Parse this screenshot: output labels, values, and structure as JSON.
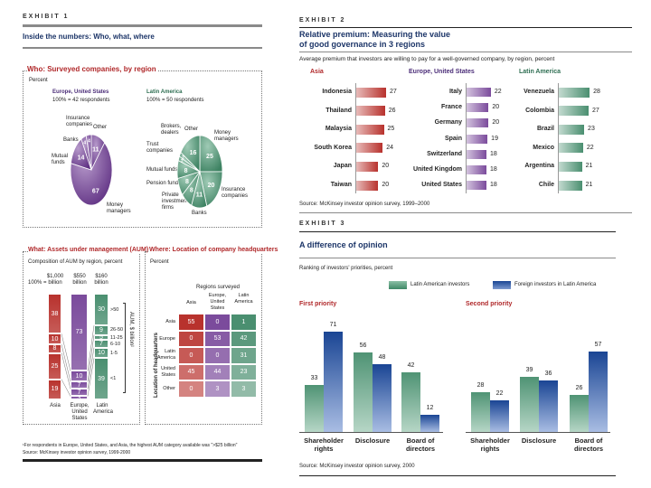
{
  "exhibit1": {
    "label": "EXHIBIT 1",
    "title": "Inside the numbers: Who, what, where",
    "footnote": "¹For respondents in Europe, United States, and Asia, the highest AUM category available was \">$25 billion\"",
    "source": "Source: McKinsey investor opinion survey, 1999-2000"
  },
  "exhibit2": {
    "label": "EXHIBIT 2",
    "title_line1": "Relative premium: Measuring the value",
    "title_line2": "of good governance in 3 regions",
    "source": "Source: McKinsey investor opinion survey, 1999–2000"
  },
  "exhibit3": {
    "label": "EXHIBIT 3",
    "title": "A difference of opinion",
    "source": "Source: McKinsey investor opinion survey, 2000"
  },
  "colors": {
    "asia_red": "#b8322d",
    "europe_purple": "#7b4b9c",
    "latam_green": "#4a8f70",
    "foreign_blue": "#1f4d9b",
    "title_navy": "#1c3568",
    "heading_red": "#b0282a"
  },
  "chart_data": [
    {
      "type": "pie",
      "title": "Who: Surveyed companies, by region",
      "unit": "Percent",
      "pies": [
        {
          "name": "Europe, United States",
          "base": "100% = 42 respondents",
          "slices": [
            {
              "label": "Other",
              "value": 11
            },
            {
              "label": "Money managers",
              "value": 67
            },
            {
              "label": "Mutual funds",
              "value": 14
            },
            {
              "label": "Banks",
              "value": 4
            },
            {
              "label": "Insurance companies",
              "value": 4
            }
          ]
        },
        {
          "name": "Latin America",
          "base": "100% = 50 respondents",
          "slices": [
            {
              "label": "Money managers",
              "value": 25
            },
            {
              "label": "Insurance companies",
              "value": 20
            },
            {
              "label": "Banks",
              "value": 11
            },
            {
              "label": "Private investment firms",
              "value": 8
            },
            {
              "label": "Pension funds",
              "value": 8
            },
            {
              "label": "Mutual funds",
              "value": 8
            },
            {
              "label": "Trust companies",
              "value": 2
            },
            {
              "label": "Brokers, dealers",
              "value": 2
            },
            {
              "label": "Other",
              "value": 16
            }
          ]
        }
      ]
    },
    {
      "type": "bar",
      "stacked": true,
      "title": "What: Assets under management (AUM)",
      "subtitle": "Composition of AUM by region, percent",
      "total_prefix": "100% =",
      "axis_label": "AUM, $ billion¹",
      "bands": [
        ">50",
        "26-50",
        "11-25",
        "6-10",
        "1-5",
        "<1"
      ],
      "columns": [
        {
          "name": "Asia",
          "total": "$1,000",
          "total_unit": "billion",
          "segments": [
            38,
            10,
            8,
            25,
            19
          ]
        },
        {
          "name": "Europe, United States",
          "total": "$550",
          "total_unit": "billion",
          "segments": [
            73,
            10,
            7,
            7,
            3
          ]
        },
        {
          "name": "Latin America",
          "total": "$160",
          "total_unit": "billion",
          "segments": [
            30,
            9,
            5,
            7,
            10,
            39
          ]
        }
      ]
    },
    {
      "type": "table",
      "title": "Where: Location of company headquarters",
      "unit": "Percent",
      "column_group": "Regions surveyed",
      "row_group": "Location of headquarters",
      "columns": [
        "Asia",
        "Europe, United States",
        "Latin America"
      ],
      "rows": [
        {
          "label": "Asia",
          "values": [
            55,
            0,
            1
          ]
        },
        {
          "label": "Europe",
          "values": [
            0,
            53,
            42
          ]
        },
        {
          "label": "Latin America",
          "values": [
            0,
            0,
            31
          ]
        },
        {
          "label": "United States",
          "values": [
            45,
            44,
            23
          ]
        },
        {
          "label": "Other",
          "values": [
            0,
            3,
            3
          ]
        }
      ]
    },
    {
      "type": "bar",
      "orientation": "horizontal",
      "subtitle": "Average premium that investors are willing to pay for a well-governed company, by region, percent",
      "groups": [
        {
          "name": "Asia",
          "categories": [
            "Indonesia",
            "Thailand",
            "Malaysia",
            "South Korea",
            "Japan",
            "Taiwan"
          ],
          "values": [
            27,
            26,
            25,
            24,
            20,
            20
          ]
        },
        {
          "name": "Europe, United States",
          "categories": [
            "Italy",
            "France",
            "Germany",
            "Spain",
            "Switzerland",
            "United Kingdom",
            "United States"
          ],
          "values": [
            22,
            20,
            20,
            19,
            18,
            18,
            18
          ]
        },
        {
          "name": "Latin America",
          "categories": [
            "Venezuela",
            "Colombia",
            "Brazil",
            "Mexico",
            "Argentina",
            "Chile"
          ],
          "values": [
            28,
            27,
            23,
            22,
            21,
            21
          ]
        }
      ]
    },
    {
      "type": "bar",
      "subtitle": "Ranking of investors' priorities, percent",
      "legend": [
        "Latin American investors",
        "Foreign investors in Latin America"
      ],
      "legend_position": "top-right",
      "panels": [
        {
          "title": "First priority",
          "categories": [
            "Shareholder rights",
            "Disclosure",
            "Board of directors"
          ],
          "series": [
            {
              "name": "Latin American investors",
              "values": [
                33,
                56,
                42
              ]
            },
            {
              "name": "Foreign investors in Latin America",
              "values": [
                71,
                48,
                12
              ]
            }
          ]
        },
        {
          "title": "Second priority",
          "categories": [
            "Shareholder rights",
            "Disclosure",
            "Board of directors"
          ],
          "series": [
            {
              "name": "Latin American investors",
              "values": [
                28,
                39,
                26
              ]
            },
            {
              "name": "Foreign investors in Latin America",
              "values": [
                22,
                36,
                57
              ]
            }
          ]
        }
      ]
    }
  ]
}
